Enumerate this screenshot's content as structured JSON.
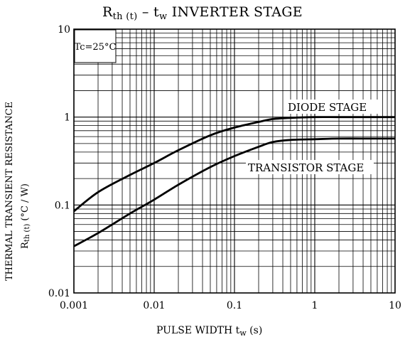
{
  "title": {
    "main": "R",
    "sub": "th (t)",
    "dash": " – t",
    "sub2": "w",
    "rest": " INVERTER STAGE"
  },
  "xlabel": {
    "main": "PULSE WIDTH   t",
    "sub": "w",
    "unit": "   (s)"
  },
  "ylabel": {
    "line1": "THERMAL TRANSIENT RESISTANCE",
    "line2_main": "R",
    "line2_sub": "th (t)",
    "line2_unit": "   (°C / W)"
  },
  "chart_data": {
    "type": "line",
    "xscale": "log",
    "yscale": "log",
    "xlim": [
      0.001,
      10
    ],
    "ylim": [
      0.01,
      10
    ],
    "x_ticks": [
      "0.001",
      "0.01",
      "0.1",
      "1",
      "10"
    ],
    "y_ticks": [
      "0.01",
      "0.1",
      "1",
      "10"
    ],
    "grid": true,
    "legend": "none",
    "condition_box": "Tc=25°C",
    "series": [
      {
        "name": "DIODE STAGE",
        "x": [
          0.001,
          0.002,
          0.005,
          0.01,
          0.02,
          0.05,
          0.1,
          0.2,
          0.3,
          0.5,
          1,
          2,
          5,
          10
        ],
        "y": [
          0.085,
          0.14,
          0.22,
          0.3,
          0.42,
          0.62,
          0.76,
          0.88,
          0.95,
          0.98,
          1.0,
          1.0,
          1.0,
          1.0
        ]
      },
      {
        "name": "TRANSISTOR STAGE",
        "x": [
          0.001,
          0.002,
          0.005,
          0.01,
          0.02,
          0.05,
          0.1,
          0.2,
          0.3,
          0.5,
          1,
          2,
          5,
          10
        ],
        "y": [
          0.034,
          0.048,
          0.08,
          0.115,
          0.17,
          0.27,
          0.36,
          0.46,
          0.52,
          0.55,
          0.56,
          0.57,
          0.57,
          0.57
        ]
      }
    ]
  }
}
